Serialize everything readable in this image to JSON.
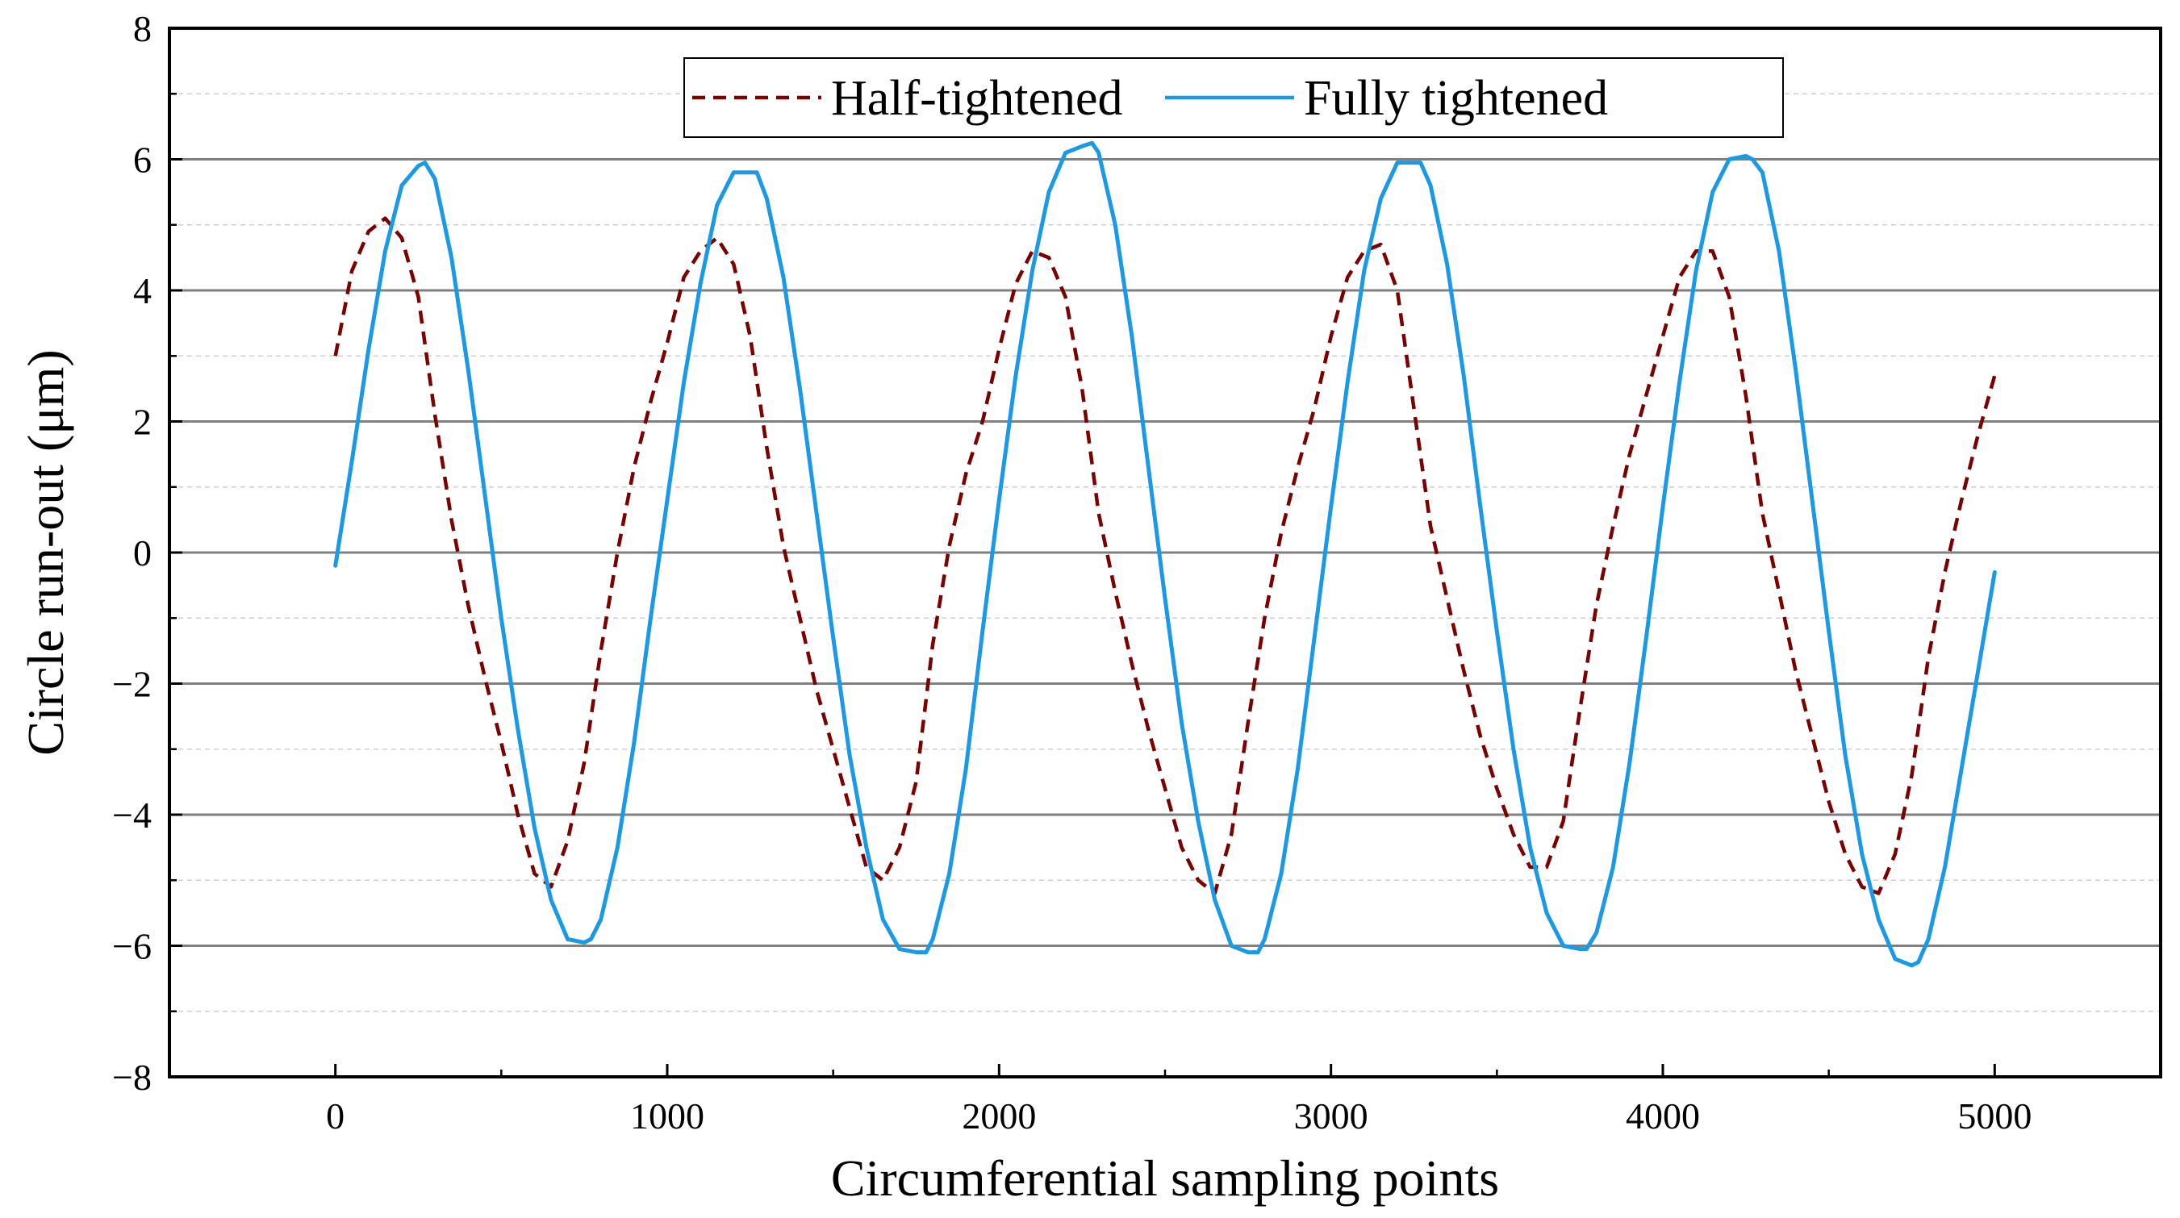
{
  "chart_data": {
    "type": "line",
    "title": "",
    "xlabel": "Circumferential sampling points",
    "ylabel": "Circle run-out (μm)",
    "xlim": [
      -500,
      5500
    ],
    "ylim": [
      -8,
      8
    ],
    "x_ticks": [
      0,
      1000,
      2000,
      3000,
      4000,
      5000
    ],
    "x_tick_labels": [
      "0",
      "1000",
      "2000",
      "3000",
      "4000",
      "5000"
    ],
    "y_ticks": [
      -8,
      -6,
      -4,
      -2,
      0,
      2,
      4,
      6,
      8
    ],
    "y_tick_labels": [
      "−8",
      "−6",
      "−4",
      "−2",
      "0",
      "2",
      "4",
      "6",
      "8"
    ],
    "major_gridlines_y": [
      -6,
      -4,
      -2,
      0,
      2,
      4,
      6
    ],
    "minor_gridlines_y": [
      -7,
      -5,
      -3,
      -1,
      1,
      3,
      5,
      7
    ],
    "legend_position": "top-center",
    "series": [
      {
        "name": "Half-tightened",
        "color": "#7b0000",
        "style": "dashed",
        "x": [
          0,
          50,
          100,
          150,
          200,
          250,
          300,
          350,
          400,
          450,
          500,
          550,
          600,
          650,
          700,
          750,
          800,
          850,
          900,
          950,
          1000,
          1050,
          1100,
          1150,
          1200,
          1250,
          1300,
          1350,
          1400,
          1450,
          1500,
          1550,
          1600,
          1650,
          1700,
          1750,
          1800,
          1850,
          1900,
          1950,
          2000,
          2050,
          2100,
          2150,
          2200,
          2250,
          2300,
          2350,
          2400,
          2450,
          2500,
          2550,
          2600,
          2650,
          2700,
          2750,
          2800,
          2850,
          2900,
          2950,
          3000,
          3050,
          3100,
          3150,
          3200,
          3250,
          3300,
          3350,
          3400,
          3450,
          3500,
          3550,
          3600,
          3650,
          3700,
          3750,
          3800,
          3850,
          3900,
          3950,
          4000,
          4050,
          4100,
          4150,
          4200,
          4250,
          4300,
          4350,
          4400,
          4450,
          4500,
          4550,
          4600,
          4650,
          4700,
          4750,
          4800,
          4850,
          4900,
          4950,
          5000
        ],
        "values": [
          3.0,
          4.3,
          4.9,
          5.1,
          4.8,
          3.9,
          2.1,
          0.5,
          -0.8,
          -1.9,
          -2.9,
          -4.0,
          -4.9,
          -5.1,
          -4.4,
          -3.2,
          -1.5,
          0.0,
          1.3,
          2.3,
          3.2,
          4.2,
          4.6,
          4.8,
          4.4,
          3.3,
          1.6,
          0.1,
          -1.0,
          -2.1,
          -3.0,
          -3.9,
          -4.8,
          -5.0,
          -4.5,
          -3.5,
          -1.4,
          0.1,
          1.2,
          2.0,
          3.1,
          4.1,
          4.6,
          4.5,
          3.9,
          2.5,
          0.6,
          -0.6,
          -1.7,
          -2.7,
          -3.6,
          -4.5,
          -5.0,
          -5.2,
          -4.3,
          -2.6,
          -1.0,
          0.3,
          1.3,
          2.2,
          3.3,
          4.2,
          4.6,
          4.7,
          4.0,
          2.2,
          0.4,
          -0.7,
          -1.8,
          -2.8,
          -3.6,
          -4.3,
          -4.8,
          -4.8,
          -4.1,
          -2.4,
          -0.8,
          0.4,
          1.5,
          2.4,
          3.3,
          4.2,
          4.6,
          4.6,
          3.9,
          2.4,
          0.6,
          -0.6,
          -1.8,
          -2.8,
          -3.8,
          -4.6,
          -5.1,
          -5.2,
          -4.6,
          -3.4,
          -1.6,
          -0.3,
          0.8,
          1.8,
          2.7
        ]
      },
      {
        "name": "Fully tightened",
        "color": "#1a9ae6",
        "style": "solid",
        "x": [
          0,
          50,
          100,
          150,
          200,
          250,
          270,
          300,
          350,
          400,
          450,
          500,
          550,
          600,
          650,
          700,
          750,
          770,
          800,
          850,
          900,
          950,
          1000,
          1050,
          1100,
          1150,
          1200,
          1250,
          1270,
          1300,
          1350,
          1400,
          1450,
          1500,
          1550,
          1600,
          1650,
          1700,
          1750,
          1780,
          1800,
          1850,
          1900,
          1950,
          2000,
          2050,
          2100,
          2150,
          2200,
          2250,
          2280,
          2300,
          2350,
          2400,
          2450,
          2500,
          2550,
          2600,
          2650,
          2700,
          2750,
          2780,
          2800,
          2850,
          2900,
          2950,
          3000,
          3050,
          3100,
          3150,
          3200,
          3250,
          3270,
          3300,
          3350,
          3400,
          3450,
          3500,
          3550,
          3600,
          3650,
          3700,
          3750,
          3770,
          3800,
          3850,
          3900,
          3950,
          4000,
          4050,
          4100,
          4150,
          4200,
          4250,
          4270,
          4300,
          4350,
          4400,
          4450,
          4500,
          4550,
          4600,
          4650,
          4700,
          4750,
          4770,
          4800,
          4850,
          4900,
          4950,
          5000
        ],
        "values": [
          -0.2,
          1.4,
          3.1,
          4.6,
          5.6,
          5.9,
          5.95,
          5.7,
          4.5,
          2.8,
          0.9,
          -1.0,
          -2.7,
          -4.2,
          -5.3,
          -5.9,
          -5.95,
          -5.9,
          -5.6,
          -4.5,
          -2.9,
          -1.0,
          0.8,
          2.6,
          4.1,
          5.3,
          5.8,
          5.8,
          5.8,
          5.4,
          4.2,
          2.5,
          0.6,
          -1.3,
          -3.1,
          -4.5,
          -5.6,
          -6.05,
          -6.1,
          -6.1,
          -5.9,
          -4.9,
          -3.3,
          -1.2,
          0.8,
          2.7,
          4.3,
          5.5,
          6.1,
          6.2,
          6.25,
          6.1,
          5.0,
          3.3,
          1.3,
          -0.7,
          -2.6,
          -4.1,
          -5.3,
          -6.0,
          -6.1,
          -6.1,
          -5.9,
          -4.9,
          -3.3,
          -1.3,
          0.7,
          2.6,
          4.3,
          5.4,
          5.95,
          5.95,
          5.95,
          5.6,
          4.4,
          2.7,
          0.7,
          -1.2,
          -3.0,
          -4.5,
          -5.5,
          -6.0,
          -6.05,
          -6.05,
          -5.8,
          -4.8,
          -3.2,
          -1.3,
          0.7,
          2.6,
          4.3,
          5.5,
          6.0,
          6.05,
          6.0,
          5.8,
          4.6,
          2.8,
          0.8,
          -1.2,
          -3.1,
          -4.6,
          -5.6,
          -6.2,
          -6.3,
          -6.25,
          -5.9,
          -4.8,
          -3.3,
          -1.8,
          -0.3
        ]
      }
    ]
  }
}
